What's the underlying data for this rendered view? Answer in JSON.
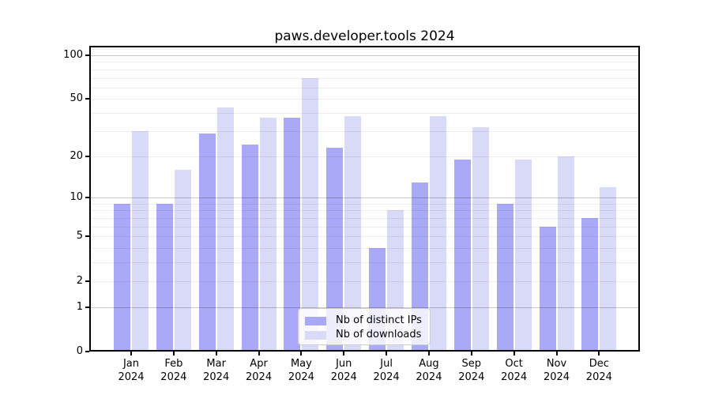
{
  "title": "paws.developer.tools 2024",
  "colors": {
    "ips_bar": "#a9a9f7",
    "downloads_bar": "#d9d9f8",
    "grid_major": "rgba(0,0,0,0.22)",
    "grid_minor": "rgba(0,0,0,0.065)",
    "spine": "#000000",
    "legend_border": "#cccccc",
    "legend_background": "rgba(255,255,255,0.8)"
  },
  "legend": {
    "items": [
      {
        "label": "Nb of distinct IPs",
        "swatch": "ips_bar"
      },
      {
        "label": "Nb of downloads",
        "swatch": "downloads_bar"
      }
    ]
  },
  "chart_data": {
    "type": "bar",
    "title": "paws.developer.tools 2024",
    "categories": [
      "Jan 2024",
      "Feb 2024",
      "Mar 2024",
      "Apr 2024",
      "May 2024",
      "Jun 2024",
      "Jul 2024",
      "Aug 2024",
      "Sep 2024",
      "Oct 2024",
      "Nov 2024",
      "Dec 2024"
    ],
    "series": [
      {
        "name": "Nb of distinct IPs",
        "color": "#a9a9f7",
        "values": [
          9,
          9,
          29,
          24,
          37,
          23,
          4,
          13,
          19,
          9,
          6,
          7
        ]
      },
      {
        "name": "Nb of downloads",
        "color": "#d9d9f8",
        "values": [
          30,
          16,
          44,
          37,
          70,
          38,
          8,
          38,
          32,
          19,
          20,
          12
        ]
      }
    ],
    "xlabel": "",
    "ylabel": "",
    "yscale": "log1p",
    "ylim": [
      0,
      116
    ],
    "yticks": [
      100,
      50,
      20,
      10,
      5,
      2,
      1,
      0
    ],
    "grid": true,
    "grid_major_at": [
      1,
      10,
      100
    ],
    "grid_minor_at": [
      2,
      3,
      4,
      5,
      6,
      7,
      8,
      9,
      20,
      30,
      40,
      50,
      60,
      70,
      80,
      90,
      110
    ],
    "legend_position": "lower center inside"
  }
}
